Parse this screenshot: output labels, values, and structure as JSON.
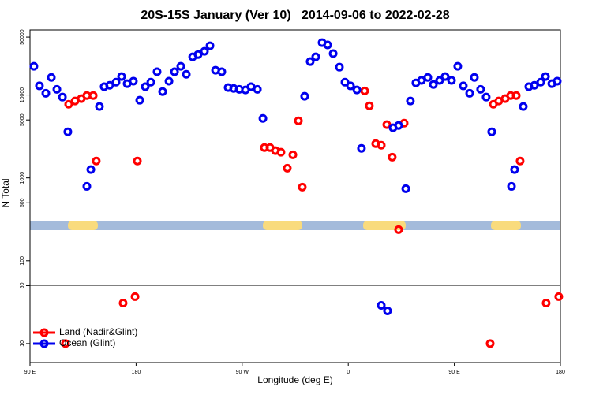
{
  "chart_data": {
    "type": "scatter",
    "title": "20S-15S January (Ver 10)   2014-09-06 to 2022-02-28",
    "x_label": "Longitude (deg E)",
    "y_label": "N Total",
    "xlim": [
      90,
      540
    ],
    "ylim": [
      5.9,
      61000
    ],
    "log_y": true,
    "xticks": [
      {
        "value": 90,
        "label": "90 E"
      },
      {
        "value": 180,
        "label": "180"
      },
      {
        "value": 270,
        "label": "90 W"
      },
      {
        "value": 360,
        "label": "0"
      },
      {
        "value": 450,
        "label": "90 E"
      },
      {
        "value": 540,
        "label": "180"
      }
    ],
    "yticks": [
      10,
      50,
      100,
      500,
      1000,
      5000,
      10000,
      50000
    ],
    "legend": "lower left",
    "series": [
      {
        "name": "Land (Nadir&Glint)",
        "color": "#ff0000",
        "x": [
          120.1,
          122.8,
          128.2,
          133.5,
          138.2,
          143.6,
          146.2,
          169.0,
          179.1,
          181.1,
          288.9,
          293.6,
          298.2,
          302.9,
          308.3,
          313.0,
          317.7,
          321.0,
          373.9,
          377.9,
          383.3,
          388.0,
          392.7,
          397.3,
          402.7,
          407.4,
          480.4,
          483.1,
          487.7,
          493.1,
          497.8,
          502.5,
          505.8,
          527.9,
          538.6
        ],
        "values": [
          10,
          7740,
          8470,
          9040,
          9860,
          9860,
          1600,
          30.8,
          36.8,
          1600,
          2320,
          2320,
          2130,
          2040,
          1310,
          1900,
          4890,
          774,
          11200,
          7410,
          2590,
          2480,
          4390,
          1780,
          237,
          4580,
          10,
          7740,
          8470,
          9040,
          9860,
          9860,
          1600,
          30.8,
          36.8
        ]
      },
      {
        "name": "Ocean (Glint)",
        "color": "#0000ee",
        "x": [
          93.3,
          98.0,
          103.4,
          108.1,
          112.8,
          117.5,
          122.1,
          138.2,
          141.6,
          148.9,
          152.9,
          157.6,
          163.0,
          167.7,
          172.4,
          177.7,
          183.1,
          187.8,
          192.5,
          197.8,
          202.5,
          207.9,
          212.6,
          217.9,
          222.6,
          228.0,
          232.6,
          238.0,
          242.7,
          247.4,
          252.7,
          258.1,
          262.8,
          267.5,
          272.8,
          277.5,
          282.9,
          287.6,
          323.0,
          327.7,
          332.4,
          337.8,
          342.5,
          347.2,
          352.5,
          357.2,
          361.9,
          367.3,
          371.2,
          388.0,
          393.3,
          398.0,
          402.7,
          408.8,
          412.7,
          417.4,
          422.1,
          427.5,
          432.2,
          437.5,
          442.2,
          447.6,
          452.9,
          457.6,
          463.0,
          467.0,
          472.3,
          477.0,
          481.7,
          498.5,
          501.1,
          508.5,
          513.2,
          517.9,
          523.3,
          527.3,
          532.7,
          537.3
        ],
        "values": [
          22200,
          12900,
          10500,
          16300,
          11700,
          9440,
          3600,
          790,
          1260,
          7260,
          12600,
          13100,
          14300,
          16700,
          13700,
          14700,
          8650,
          12600,
          14300,
          19100,
          11000,
          14700,
          19100,
          22200,
          17800,
          28900,
          30800,
          33700,
          39300,
          19900,
          19100,
          12300,
          12000,
          11700,
          11500,
          12600,
          11700,
          5220,
          9660,
          25300,
          28900,
          42900,
          40200,
          31600,
          21700,
          14300,
          12900,
          11500,
          2270,
          28.9,
          24.8,
          4020,
          4290,
          741,
          8470,
          14000,
          15000,
          16300,
          13400,
          15000,
          16700,
          15000,
          22200,
          12900,
          10500,
          16300,
          11700,
          9440,
          3600,
          790,
          1260,
          7260,
          12600,
          13100,
          14300,
          16700,
          13700,
          14700
        ]
      }
    ]
  }
}
